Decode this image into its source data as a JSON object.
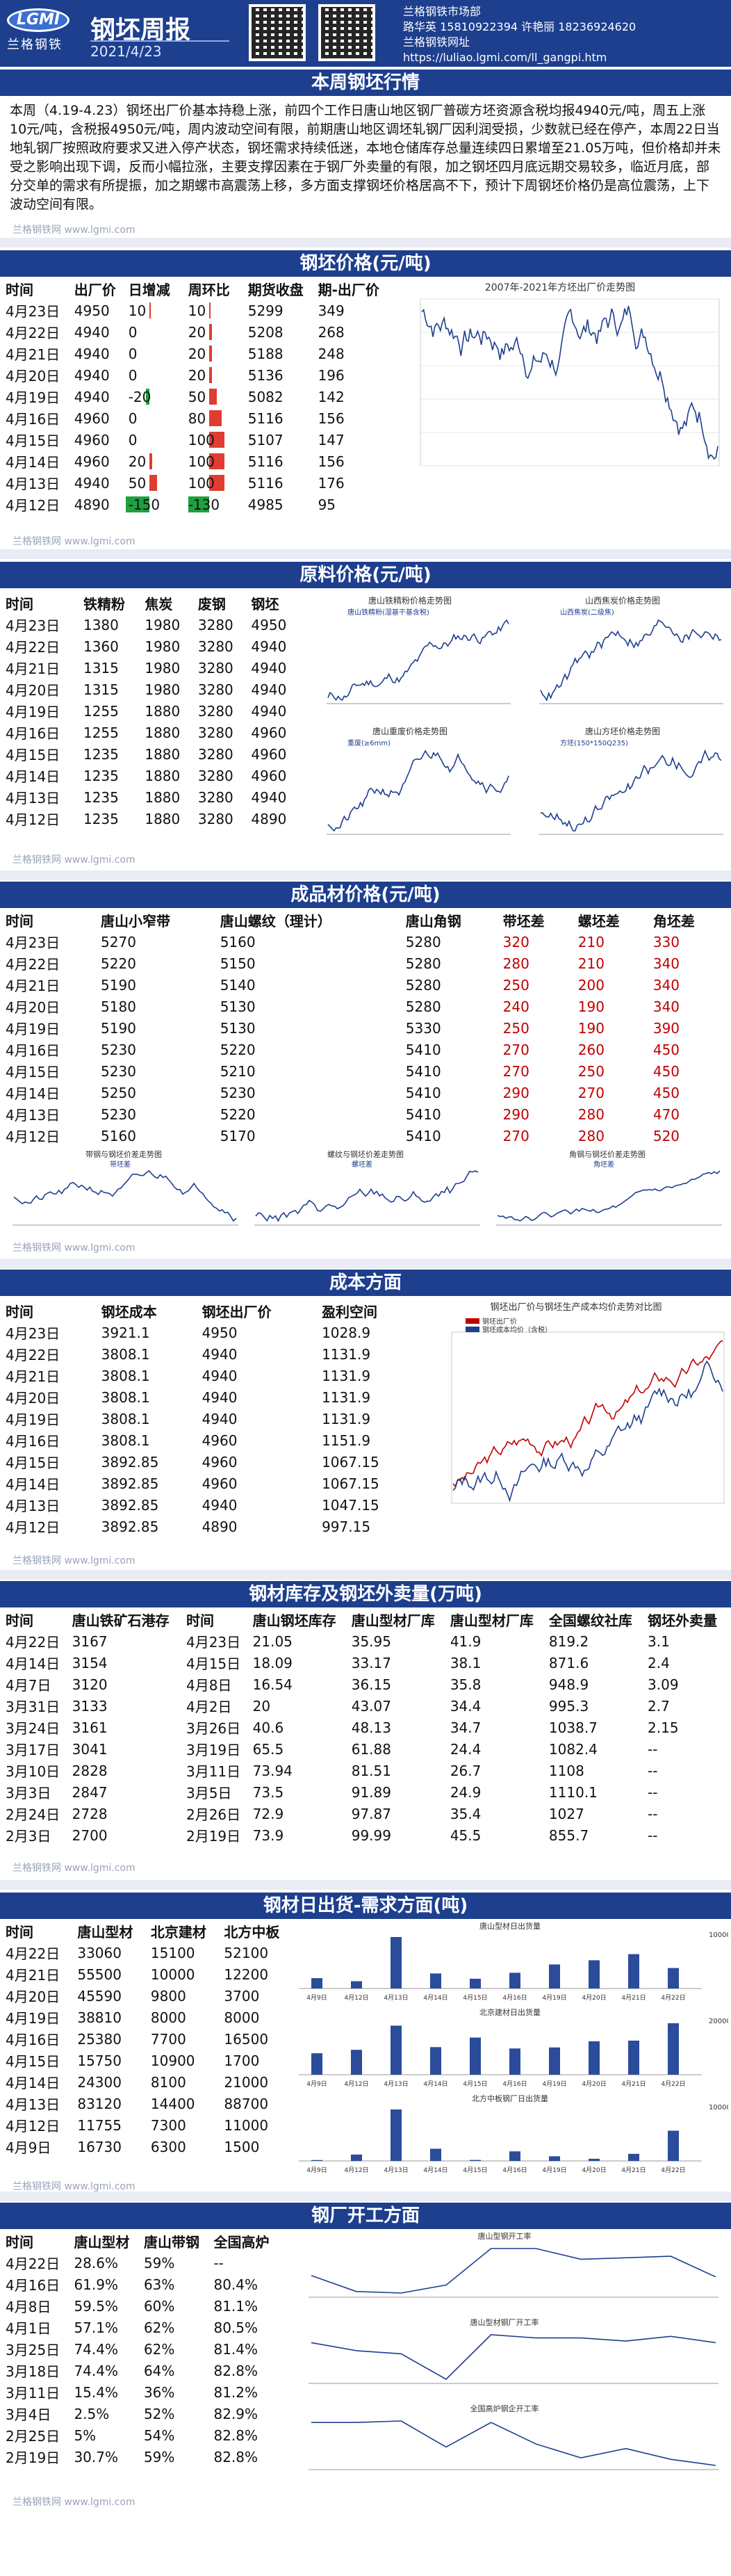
{
  "header": {
    "logo_text": "LGMI",
    "logo_sub": "兰格钢铁",
    "title": "钢坯周报",
    "date": "2021/4/23",
    "org": "兰格钢铁市场部",
    "phone_line": "路华英 15810922394 许艳丽 18236924620",
    "site_label": "兰格钢铁网址",
    "url": "https://luliao.lgmi.com/ll_gangpi.htm"
  },
  "review": {
    "title": "本周钢坯行情",
    "text": "本周（4.19-4.23）钢坯出厂价基本持稳上涨，前四个工作日唐山地区钢厂普碳方坯资源含税均报4940元/吨，周五上涨10元/吨，含税报4950元/吨，周内波动空间有限，前期唐山地区调坯轧钢厂因利润受损，少数就已经在停产，本周22日当地轧钢厂按照政府要求又进入停产状态，钢坯需求持续低迷，本地仓储库存总量连续四日累增至21.05万吨，但价格却并未受之影响出现下调，反而小幅拉涨，主要支撑因素在于钢厂外卖量的有限，加之钢坯四月底远期交易较多，临近月底，部分交单的需求有所提振，加之期螺市高震荡上移，多方面支撑钢坯价格居高不下，预计下周钢坯价格仍是高位震荡，上下波动空间有限。",
    "watermark": "兰格钢铁网 www.lgmi.com"
  },
  "billet": {
    "title": "钢坯价格(元/吨)",
    "headers": [
      "时间",
      "出厂价",
      "日增减",
      "周环比",
      "期货收盘",
      "期-出厂价"
    ],
    "rows": [
      [
        "4月23日",
        "4950",
        "10",
        "10",
        "5299",
        "349"
      ],
      [
        "4月22日",
        "4940",
        "0",
        "20",
        "5208",
        "268"
      ],
      [
        "4月21日",
        "4940",
        "0",
        "20",
        "5188",
        "248"
      ],
      [
        "4月20日",
        "4940",
        "0",
        "20",
        "5136",
        "196"
      ],
      [
        "4月19日",
        "4940",
        "-20",
        "50",
        "5082",
        "142"
      ],
      [
        "4月16日",
        "4960",
        "0",
        "80",
        "5116",
        "156"
      ],
      [
        "4月15日",
        "4960",
        "0",
        "100",
        "5107",
        "147"
      ],
      [
        "4月14日",
        "4960",
        "20",
        "100",
        "5116",
        "156"
      ],
      [
        "4月13日",
        "4940",
        "50",
        "100",
        "5116",
        "176"
      ],
      [
        "4月12日",
        "4890",
        "-150",
        "-130",
        "4985",
        "95"
      ]
    ],
    "chart_title": "2007年-2021年方坯出厂价走势图",
    "watermark": "兰格钢铁网 www.lgmi.com"
  },
  "raw": {
    "title": "原料价格(元/吨)",
    "headers": [
      "时间",
      "铁精粉",
      "焦炭",
      "废钢",
      "钢坯"
    ],
    "rows": [
      [
        "4月23日",
        "1380",
        "1980",
        "3280",
        "4950"
      ],
      [
        "4月22日",
        "1360",
        "1980",
        "3280",
        "4940"
      ],
      [
        "4月21日",
        "1315",
        "1980",
        "3280",
        "4940"
      ],
      [
        "4月20日",
        "1315",
        "1980",
        "3280",
        "4940"
      ],
      [
        "4月19日",
        "1255",
        "1880",
        "3280",
        "4940"
      ],
      [
        "4月16日",
        "1255",
        "1880",
        "3280",
        "4960"
      ],
      [
        "4月15日",
        "1235",
        "1880",
        "3280",
        "4960"
      ],
      [
        "4月14日",
        "1235",
        "1880",
        "3280",
        "4960"
      ],
      [
        "4月13日",
        "1235",
        "1880",
        "3280",
        "4940"
      ],
      [
        "4月12日",
        "1235",
        "1880",
        "3280",
        "4890"
      ]
    ],
    "mini_charts": [
      {
        "title": "唐山铁精粉价格走势图",
        "legend": "唐山铁精粉(湿基干基含税)"
      },
      {
        "title": "山西焦炭价格走势图",
        "legend": "山西焦炭(二级焦)"
      },
      {
        "title": "唐山重废价格走势图",
        "legend": "重废(≥6mm)"
      },
      {
        "title": "唐山方坯价格走势图",
        "legend": "方坯(150*150Q235)"
      }
    ],
    "watermark": "兰格钢铁网 www.lgmi.com"
  },
  "finished": {
    "title": "成品材价格(元/吨)",
    "headers": [
      "时间",
      "唐山小窄带",
      "唐山螺纹（理计）",
      "唐山角钢",
      "带坯差",
      "螺坯差",
      "角坯差"
    ],
    "rows": [
      [
        "4月23日",
        "5270",
        "5160",
        "5280",
        "320",
        "210",
        "330"
      ],
      [
        "4月22日",
        "5220",
        "5150",
        "5280",
        "280",
        "210",
        "340"
      ],
      [
        "4月21日",
        "5190",
        "5140",
        "5280",
        "250",
        "200",
        "340"
      ],
      [
        "4月20日",
        "5180",
        "5130",
        "5280",
        "240",
        "190",
        "340"
      ],
      [
        "4月19日",
        "5190",
        "5130",
        "5330",
        "250",
        "190",
        "390"
      ],
      [
        "4月16日",
        "5230",
        "5220",
        "5410",
        "270",
        "260",
        "450"
      ],
      [
        "4月15日",
        "5230",
        "5210",
        "5410",
        "270",
        "250",
        "450"
      ],
      [
        "4月14日",
        "5250",
        "5230",
        "5410",
        "290",
        "270",
        "450"
      ],
      [
        "4月13日",
        "5230",
        "5220",
        "5410",
        "290",
        "280",
        "470"
      ],
      [
        "4月12日",
        "5160",
        "5170",
        "5410",
        "270",
        "280",
        "520"
      ]
    ],
    "mini_charts": [
      {
        "title": "带钢与钢坯价差走势图",
        "legend": "带坯差"
      },
      {
        "title": "螺纹与钢坯价差走势图",
        "legend": "螺坯差"
      },
      {
        "title": "角钢与钢坯价差走势图",
        "legend": "角坯差"
      }
    ],
    "watermark": "兰格钢铁网 www.lgmi.com"
  },
  "cost": {
    "title": "成本方面",
    "headers": [
      "时间",
      "钢坯成本",
      "钢坯出厂价",
      "盈利空间"
    ],
    "rows": [
      [
        "4月23日",
        "3921.1",
        "4950",
        "1028.9"
      ],
      [
        "4月22日",
        "3808.1",
        "4940",
        "1131.9"
      ],
      [
        "4月21日",
        "3808.1",
        "4940",
        "1131.9"
      ],
      [
        "4月20日",
        "3808.1",
        "4940",
        "1131.9"
      ],
      [
        "4月19日",
        "3808.1",
        "4940",
        "1131.9"
      ],
      [
        "4月16日",
        "3808.1",
        "4960",
        "1151.9"
      ],
      [
        "4月15日",
        "3892.85",
        "4960",
        "1067.15"
      ],
      [
        "4月14日",
        "3892.85",
        "4960",
        "1067.15"
      ],
      [
        "4月13日",
        "3892.85",
        "4940",
        "1047.15"
      ],
      [
        "4月12日",
        "3892.85",
        "4890",
        "997.15"
      ]
    ],
    "chart_title": "钢坯出厂价与钢坯生产成本均价走势对比图",
    "legend": [
      "钢坯出厂价",
      "钢坯成本均价（含税）"
    ],
    "watermark": "兰格钢铁网 www.lgmi.com"
  },
  "stock": {
    "title": "钢材库存及钢坯外卖量(万吨)",
    "headers": [
      "时间",
      "唐山铁矿石港存",
      "时间",
      "唐山钢坯库存",
      "唐山型材厂库",
      "唐山型材厂库",
      "全国螺纹社库",
      "钢坯外卖量"
    ],
    "rows": [
      [
        "4月22日",
        "3167",
        "4月23日",
        "21.05",
        "35.95",
        "41.9",
        "819.2",
        "3.1"
      ],
      [
        "4月14日",
        "3154",
        "4月15日",
        "18.09",
        "33.17",
        "38.1",
        "871.6",
        "2.4"
      ],
      [
        "4月7日",
        "3120",
        "4月8日",
        "16.54",
        "36.15",
        "35.8",
        "948.9",
        "3.09"
      ],
      [
        "3月31日",
        "3133",
        "4月2日",
        "20",
        "43.07",
        "34.4",
        "995.3",
        "2.7"
      ],
      [
        "3月24日",
        "3161",
        "3月26日",
        "40.6",
        "48.13",
        "34.7",
        "1038.7",
        "2.15"
      ],
      [
        "3月17日",
        "3041",
        "3月19日",
        "65.5",
        "61.88",
        "24.4",
        "1082.4",
        "--"
      ],
      [
        "3月10日",
        "2828",
        "3月11日",
        "73.94",
        "81.51",
        "26.7",
        "1108",
        "--"
      ],
      [
        "3月3日",
        "2847",
        "3月5日",
        "73.5",
        "91.89",
        "24.9",
        "1110.1",
        "--"
      ],
      [
        "2月24日",
        "2728",
        "2月26日",
        "72.9",
        "97.87",
        "35.4",
        "1027",
        "--"
      ],
      [
        "2月3日",
        "2700",
        "2月19日",
        "73.9",
        "99.99",
        "45.5",
        "855.7",
        "--"
      ]
    ],
    "watermark": "兰格钢铁网 www.lgmi.com"
  },
  "shipment": {
    "title": "钢材日出货-需求方面(吨)",
    "headers": [
      "时间",
      "唐山型材",
      "北京建材",
      "北方中板"
    ],
    "rows": [
      [
        "4月22日",
        "33060",
        "15100",
        "52100"
      ],
      [
        "4月21日",
        "55500",
        "10000",
        "12200"
      ],
      [
        "4月20日",
        "45590",
        "9800",
        "3700"
      ],
      [
        "4月19日",
        "38810",
        "8000",
        "8000"
      ],
      [
        "4月16日",
        "25380",
        "7700",
        "16500"
      ],
      [
        "4月15日",
        "15750",
        "10900",
        "1700"
      ],
      [
        "4月14日",
        "24300",
        "8100",
        "21000"
      ],
      [
        "4月13日",
        "83120",
        "14400",
        "88700"
      ],
      [
        "4月12日",
        "11755",
        "7300",
        "11000"
      ],
      [
        "4月9日",
        "16730",
        "6300",
        "1500"
      ]
    ],
    "charts": [
      {
        "title": "唐山型材日出货量",
        "ymax": "100000"
      },
      {
        "title": "北京建材日出货量",
        "ymax": "20000"
      },
      {
        "title": "北方中板钢厂日出货量",
        "ymax": "100000"
      }
    ],
    "dates": [
      "4月9日",
      "4月12日",
      "4月13日",
      "4月14日",
      "4月15日",
      "4月16日",
      "4月19日",
      "4月20日",
      "4月21日",
      "4月22日"
    ],
    "watermark": "兰格钢铁网 www.lgmi.com"
  },
  "operation": {
    "title": "钢厂开工方面",
    "headers": [
      "时间",
      "唐山型材",
      "唐山带钢",
      "全国高炉"
    ],
    "rows": [
      [
        "4月22日",
        "28.6%",
        "59%",
        "--"
      ],
      [
        "4月16日",
        "61.9%",
        "63%",
        "80.4%"
      ],
      [
        "4月8日",
        "59.5%",
        "60%",
        "81.1%"
      ],
      [
        "4月1日",
        "57.1%",
        "62%",
        "80.5%"
      ],
      [
        "3月25日",
        "74.4%",
        "62%",
        "81.4%"
      ],
      [
        "3月18日",
        "74.4%",
        "64%",
        "82.8%"
      ],
      [
        "3月11日",
        "15.4%",
        "36%",
        "81.2%"
      ],
      [
        "3月4日",
        "2.5%",
        "52%",
        "82.9%"
      ],
      [
        "2月25日",
        "5%",
        "54%",
        "82.8%"
      ],
      [
        "2月19日",
        "30.7%",
        "59%",
        "82.8%"
      ]
    ],
    "charts": [
      {
        "title": "唐山型钢开工率"
      },
      {
        "title": "唐山型材钢厂开工率"
      },
      {
        "title": "全国高炉钢企开工率"
      }
    ],
    "watermark": "兰格钢铁网 www.lgmi.com"
  }
}
